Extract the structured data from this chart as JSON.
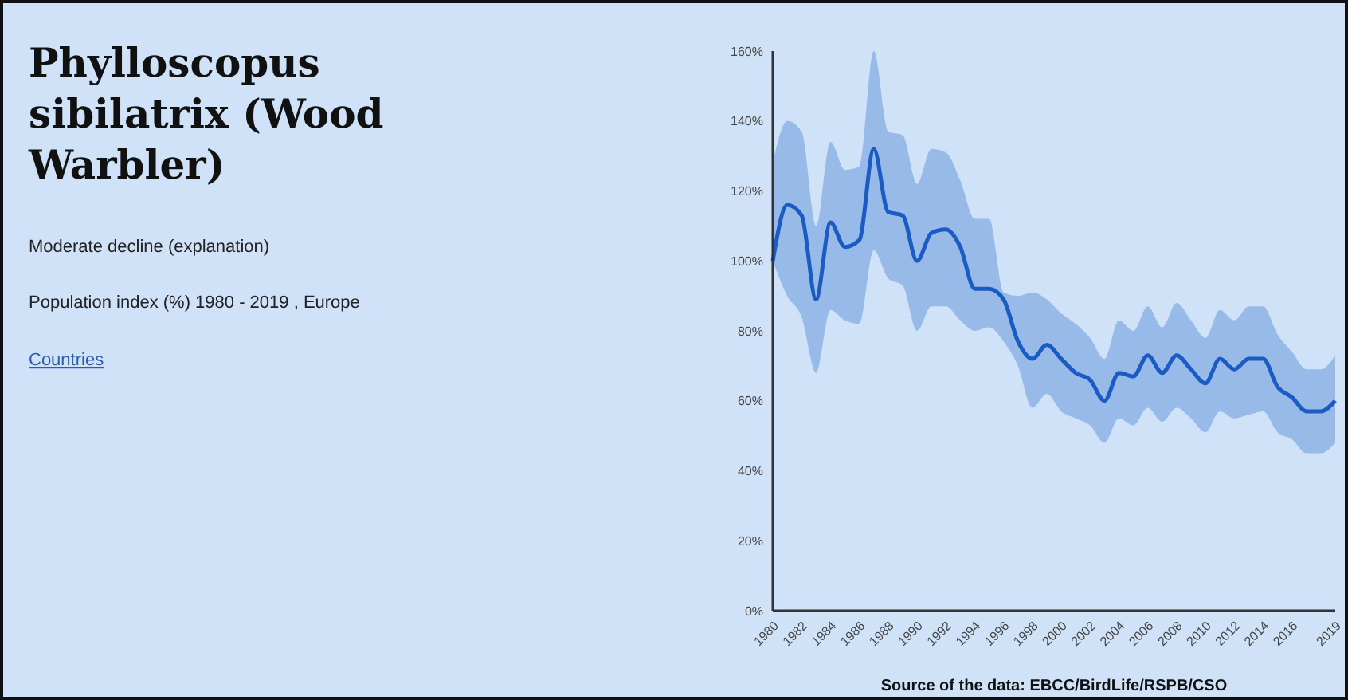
{
  "chart_data": {
    "type": "line",
    "title": "Phylloscopus sibilatrix (Wood Warbler)",
    "subtitle": "Moderate decline (explanation)",
    "annotations": [
      "Population index (%) 1980 - 2019 , Europe",
      "Countries",
      "Source of the data: EBCC/BirdLife/RSPB/CSO"
    ],
    "x": [
      1980,
      1981,
      1982,
      1983,
      1984,
      1985,
      1986,
      1987,
      1988,
      1989,
      1990,
      1991,
      1992,
      1993,
      1994,
      1995,
      1996,
      1997,
      1998,
      1999,
      2000,
      2001,
      2002,
      2003,
      2004,
      2005,
      2006,
      2007,
      2008,
      2009,
      2010,
      2011,
      2012,
      2013,
      2014,
      2015,
      2016,
      2017,
      2018,
      2019
    ],
    "series": [
      {
        "color": "#1a5cc4",
        "values": [
          100,
          116,
          113,
          89,
          111,
          104,
          106,
          132,
          114,
          113,
          100,
          108,
          109,
          104,
          92,
          92,
          89,
          77,
          72,
          76,
          72,
          68,
          66,
          60,
          68,
          67,
          73,
          68,
          73,
          69,
          65,
          72,
          69,
          72,
          72,
          64,
          61,
          57,
          57,
          60
        ],
        "upper": [
          128,
          140,
          137,
          110,
          134,
          126,
          127,
          160,
          137,
          136,
          122,
          132,
          131,
          123,
          112,
          112,
          91,
          90,
          91,
          89,
          85,
          82,
          78,
          72,
          83,
          80,
          87,
          81,
          88,
          83,
          78,
          86,
          83,
          87,
          87,
          79,
          74,
          69,
          69,
          73
        ],
        "lower": [
          100,
          90,
          84,
          68,
          86,
          83,
          82,
          103,
          95,
          93,
          80,
          87,
          87,
          83,
          80,
          81,
          77,
          70,
          58,
          62,
          57,
          55,
          53,
          48,
          55,
          53,
          58,
          54,
          58,
          55,
          51,
          57,
          55,
          56,
          57,
          51,
          49,
          45,
          45,
          48
        ]
      }
    ],
    "xlim": [
      1980,
      2019
    ],
    "xticks": [
      1980,
      1982,
      1984,
      1986,
      1988,
      1990,
      1992,
      1994,
      1996,
      1998,
      2000,
      2002,
      2004,
      2006,
      2008,
      2010,
      2012,
      2014,
      2016,
      2019
    ],
    "ylim": [
      0,
      160
    ],
    "yticks": [
      {
        "value": 0,
        "label": "0%"
      },
      {
        "value": 20,
        "label": "20%"
      },
      {
        "value": 40,
        "label": "40%"
      },
      {
        "value": 60,
        "label": "60%"
      },
      {
        "value": 80,
        "label": "80%"
      },
      {
        "value": 100,
        "label": "100%"
      },
      {
        "value": 120,
        "label": "120%"
      },
      {
        "value": 140,
        "label": "140%"
      },
      {
        "value": 160,
        "label": "160%"
      }
    ],
    "marker": "none",
    "line_style": "solid",
    "grid": false
  }
}
